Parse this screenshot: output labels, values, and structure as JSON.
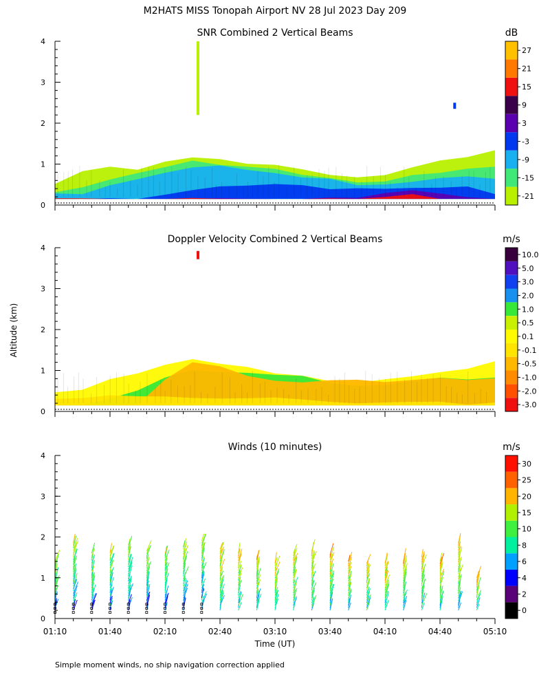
{
  "figure": {
    "title": "M2HATS MISS Tonopah Airport NV  28 Jul 2023 Day 209",
    "ylabel": "Altitude (km)",
    "xlabel": "Time (UT)",
    "footnote": "Simple moment winds, no ship navigation correction applied",
    "x_ticks": [
      "01:10",
      "01:40",
      "02:10",
      "02:40",
      "03:10",
      "03:40",
      "04:10",
      "04:40",
      "05:10"
    ]
  },
  "chart_data": [
    {
      "type": "heatmap",
      "title": "SNR Combined 2 Vertical Beams",
      "ylim": [
        0,
        4
      ],
      "y_ticks": [
        "0",
        "1",
        "2",
        "3",
        "4"
      ],
      "x_range": [
        "01:10",
        "05:10"
      ],
      "colorbar": {
        "unit": "dB",
        "labels": [
          "-21",
          "-15",
          "-9",
          "-3",
          "3",
          "9",
          "15",
          "21",
          "27"
        ],
        "colors": [
          "#b8f000",
          "#40e878",
          "#18b0f0",
          "#0038f0",
          "#5a00b0",
          "#3a004a",
          "#f01010",
          "#ff7800",
          "#ffc000"
        ]
      },
      "layers": [
        {
          "color": "#b8f000",
          "top": [
            0.55,
            0.8,
            0.9,
            0.9,
            1.1,
            1.2,
            1.1,
            1.0,
            0.95,
            0.85,
            0.75,
            0.7,
            0.75,
            0.9,
            1.05,
            1.2,
            1.35
          ]
        },
        {
          "color": "#40e878",
          "top": [
            0.35,
            0.45,
            0.65,
            0.75,
            0.95,
            1.05,
            1.0,
            0.9,
            0.85,
            0.75,
            0.65,
            0.55,
            0.6,
            0.7,
            0.8,
            0.85,
            0.9
          ]
        },
        {
          "color": "#18b0f0",
          "top": [
            0.25,
            0.3,
            0.45,
            0.6,
            0.8,
            0.95,
            0.95,
            0.85,
            0.8,
            0.7,
            0.6,
            0.5,
            0.5,
            0.55,
            0.65,
            0.7,
            0.65
          ]
        },
        {
          "color": "#0038f0",
          "top": [
            0.15,
            0.15,
            0.15,
            0.15,
            0.25,
            0.4,
            0.45,
            0.5,
            0.5,
            0.45,
            0.4,
            0.4,
            0.4,
            0.45,
            0.45,
            0.45,
            0.3
          ]
        },
        {
          "color": "#5a00b0",
          "top": [
            0.15,
            0.15,
            0.15,
            0.15,
            0.15,
            0.15,
            0.15,
            0.15,
            0.15,
            0.15,
            0.15,
            0.2,
            0.3,
            0.35,
            0.25,
            0.15,
            0.15
          ]
        },
        {
          "color": "#f01010",
          "top": [
            0.15,
            0.15,
            0.15,
            0.15,
            0.15,
            0.15,
            0.15,
            0.15,
            0.15,
            0.15,
            0.15,
            0.15,
            0.2,
            0.25,
            0.15,
            0.15,
            0.15
          ]
        }
      ],
      "blobs": [
        {
          "time": "02:28",
          "alt_bottom": 2.2,
          "alt_top": 4.0,
          "color": "#b8f000"
        },
        {
          "time": "04:48",
          "alt_bottom": 2.35,
          "alt_top": 2.5,
          "color": "#0038f0"
        }
      ]
    },
    {
      "type": "heatmap",
      "title": "Doppler Velocity Combined 2 Vertical Beams",
      "ylim": [
        0,
        4
      ],
      "y_ticks": [
        "0",
        "1",
        "2",
        "3",
        "4"
      ],
      "x_range": [
        "01:10",
        "05:10"
      ],
      "colorbar": {
        "unit": "m/s",
        "labels": [
          "-3.0",
          "-2.0",
          "-1.0",
          "-0.5",
          "-0.1",
          "0.1",
          "0.5",
          "1.0",
          "2.0",
          "3.0",
          "5.0",
          "10.0"
        ],
        "colors": [
          "#f01010",
          "#ff5000",
          "#ff8c00",
          "#ffb800",
          "#ffe400",
          "#fffa00",
          "#c8f000",
          "#38e838",
          "#1890f0",
          "#1040f0",
          "#5010c0",
          "#38003c"
        ]
      },
      "layers": [
        {
          "color": "#fffa00",
          "top": [
            0.5,
            0.55,
            0.8,
            0.9,
            1.15,
            1.25,
            1.2,
            1.05,
            0.95,
            0.85,
            0.75,
            0.7,
            0.75,
            0.85,
            0.95,
            1.05,
            1.25
          ]
        },
        {
          "color": "#38e838",
          "top": [
            0.15,
            0.15,
            0.35,
            0.55,
            0.85,
            1.0,
            1.0,
            0.95,
            0.9,
            0.85,
            0.7,
            0.6,
            0.65,
            0.75,
            0.8,
            0.8,
            0.85
          ]
        },
        {
          "color": "#ffb800",
          "top": [
            0.15,
            0.15,
            0.15,
            0.2,
            0.75,
            1.2,
            1.1,
            0.9,
            0.75,
            0.7,
            0.8,
            0.8,
            0.75,
            0.75,
            0.8,
            0.75,
            0.8
          ]
        },
        {
          "color": "#ffe400",
          "top": [
            0.3,
            0.35,
            0.4,
            0.4,
            0.4,
            0.35,
            0.3,
            0.3,
            0.3,
            0.3,
            0.25,
            0.2,
            0.2,
            0.2,
            0.2,
            0.2,
            0.2
          ]
        }
      ],
      "blobs": [
        {
          "time": "02:28",
          "alt_bottom": 3.72,
          "alt_top": 3.92,
          "color": "#f01010"
        }
      ]
    },
    {
      "type": "scatter",
      "title": "Winds (10 minutes)",
      "ylim": [
        0,
        4
      ],
      "y_ticks": [
        "0",
        "1",
        "2",
        "3",
        "4"
      ],
      "x_range": [
        "01:10",
        "05:10"
      ],
      "colorbar": {
        "unit": "m/s",
        "labels": [
          "0",
          "2",
          "4",
          "6",
          "8",
          "10",
          "15",
          "20",
          "25",
          "30"
        ],
        "colors": [
          "#000000",
          "#5a0078",
          "#0000ff",
          "#00a0ff",
          "#00f0a0",
          "#40f040",
          "#b0f000",
          "#ffb400",
          "#ff6000",
          "#ff1000"
        ]
      },
      "profiles": [
        {
          "time": "01:10",
          "top_km": 1.4
        },
        {
          "time": "01:20",
          "top_km": 1.85
        },
        {
          "time": "01:30",
          "top_km": 1.6
        },
        {
          "time": "01:40",
          "top_km": 1.6
        },
        {
          "time": "01:50",
          "top_km": 1.8
        },
        {
          "time": "02:00",
          "top_km": 1.65
        },
        {
          "time": "02:10",
          "top_km": 1.6
        },
        {
          "time": "02:20",
          "top_km": 1.75
        },
        {
          "time": "02:30",
          "top_km": 1.9
        },
        {
          "time": "02:40",
          "top_km": 1.7
        },
        {
          "time": "02:50",
          "top_km": 1.6
        },
        {
          "time": "03:00",
          "top_km": 1.5
        },
        {
          "time": "03:10",
          "top_km": 1.35
        },
        {
          "time": "03:20",
          "top_km": 1.6
        },
        {
          "time": "03:30",
          "top_km": 1.65
        },
        {
          "time": "03:40",
          "top_km": 1.55
        },
        {
          "time": "03:50",
          "top_km": 1.4
        },
        {
          "time": "04:00",
          "top_km": 1.35
        },
        {
          "time": "04:10",
          "top_km": 1.35
        },
        {
          "time": "04:20",
          "top_km": 1.4
        },
        {
          "time": "04:30",
          "top_km": 1.5
        },
        {
          "time": "04:40",
          "top_km": 1.4
        },
        {
          "time": "04:50",
          "top_km": 1.85
        },
        {
          "time": "05:00",
          "top_km": 1.0
        }
      ]
    }
  ]
}
